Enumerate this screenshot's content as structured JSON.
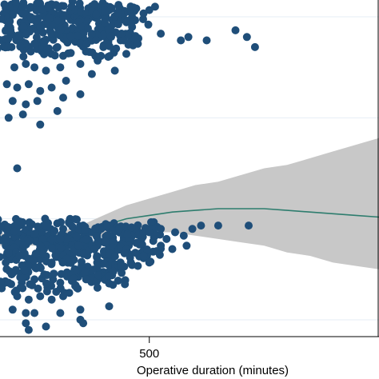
{
  "chart_data": {
    "type": "scatter",
    "title": "",
    "xlabel": "Operative duration (minutes)",
    "ylabel": "",
    "x_ticks": [
      500
    ],
    "x_tick_labels": [
      "500"
    ],
    "grid": true,
    "legend": "none",
    "colors": {
      "points": "#1f4e79",
      "fit_line": "#2e7d6e",
      "confidence_band": "#c8c8c8",
      "grid": "#e6eef4",
      "axis": "#000000"
    },
    "clusters": [
      {
        "name": "",
        "level": "upper",
        "dense_points": [
          [
            250,
            0.96
          ],
          [
            270,
            0.97
          ],
          [
            290,
            0.95
          ],
          [
            310,
            0.97
          ],
          [
            330,
            0.96
          ],
          [
            350,
            0.95
          ],
          [
            370,
            0.97
          ],
          [
            390,
            0.96
          ],
          [
            410,
            0.95
          ],
          [
            430,
            0.97
          ],
          [
            450,
            0.96
          ],
          [
            470,
            0.95
          ],
          [
            250,
            0.91
          ],
          [
            280,
            0.9
          ],
          [
            310,
            0.92
          ],
          [
            340,
            0.9
          ],
          [
            370,
            0.91
          ],
          [
            400,
            0.9
          ],
          [
            430,
            0.91
          ],
          [
            260,
            0.86
          ],
          [
            300,
            0.87
          ],
          [
            340,
            0.86
          ],
          [
            380,
            0.87
          ],
          [
            420,
            0.86
          ],
          [
            455,
            0.88
          ]
        ],
        "outliers": [
          [
            265,
            0.8
          ],
          [
            285,
            0.81
          ],
          [
            300,
            0.8
          ],
          [
            320,
            0.79
          ],
          [
            345,
            0.8
          ],
          [
            380,
            0.81
          ],
          [
            410,
            0.82
          ],
          [
            252,
            0.75
          ],
          [
            270,
            0.74
          ],
          [
            290,
            0.75
          ],
          [
            310,
            0.73
          ],
          [
            330,
            0.74
          ],
          [
            355,
            0.76
          ],
          [
            400,
            0.78
          ],
          [
            440,
            0.79
          ],
          [
            262,
            0.7
          ],
          [
            285,
            0.69
          ],
          [
            305,
            0.7
          ],
          [
            350,
            0.71
          ],
          [
            380,
            0.72
          ],
          [
            255,
            0.65
          ],
          [
            280,
            0.66
          ],
          [
            310,
            0.63
          ],
          [
            340,
            0.67
          ],
          [
            470,
            0.92
          ],
          [
            490,
            0.96
          ],
          [
            500,
            0.97
          ],
          [
            510,
            0.98
          ],
          [
            460,
            0.84
          ],
          [
            480,
            0.87
          ],
          [
            520,
            0.9
          ],
          [
            555,
            0.88
          ],
          [
            568,
            0.89
          ],
          [
            600,
            0.88
          ],
          [
            650,
            0.91
          ],
          [
            670,
            0.89
          ],
          [
            684,
            0.86
          ],
          [
            270,
            0.5
          ]
        ]
      },
      {
        "name": "",
        "level": "lower",
        "dense_points": [
          [
            250,
            0.32
          ],
          [
            270,
            0.31
          ],
          [
            290,
            0.32
          ],
          [
            310,
            0.3
          ],
          [
            330,
            0.31
          ],
          [
            350,
            0.32
          ],
          [
            370,
            0.31
          ],
          [
            390,
            0.3
          ],
          [
            410,
            0.31
          ],
          [
            430,
            0.3
          ],
          [
            450,
            0.31
          ],
          [
            470,
            0.3
          ],
          [
            490,
            0.31
          ],
          [
            250,
            0.27
          ],
          [
            280,
            0.26
          ],
          [
            310,
            0.27
          ],
          [
            340,
            0.25
          ],
          [
            370,
            0.26
          ],
          [
            400,
            0.27
          ],
          [
            430,
            0.25
          ],
          [
            460,
            0.26
          ],
          [
            490,
            0.24
          ],
          [
            250,
            0.22
          ],
          [
            290,
            0.21
          ],
          [
            330,
            0.22
          ],
          [
            370,
            0.2
          ],
          [
            410,
            0.21
          ],
          [
            450,
            0.22
          ],
          [
            255,
            0.16
          ],
          [
            300,
            0.17
          ],
          [
            345,
            0.16
          ],
          [
            390,
            0.17
          ],
          [
            430,
            0.18
          ]
        ],
        "outliers": [
          [
            500,
            0.31
          ],
          [
            510,
            0.3
          ],
          [
            520,
            0.32
          ],
          [
            530,
            0.29
          ],
          [
            545,
            0.31
          ],
          [
            560,
            0.3
          ],
          [
            575,
            0.32
          ],
          [
            590,
            0.33
          ],
          [
            620,
            0.33
          ],
          [
            673,
            0.33
          ],
          [
            520,
            0.27
          ],
          [
            540,
            0.26
          ],
          [
            565,
            0.27
          ],
          [
            480,
            0.21
          ],
          [
            500,
            0.22
          ],
          [
            270,
            0.12
          ],
          [
            290,
            0.11
          ],
          [
            310,
            0.12
          ],
          [
            330,
            0.11
          ],
          [
            350,
            0.12
          ],
          [
            262,
            0.08
          ],
          [
            285,
            0.07
          ],
          [
            300,
            0.07
          ],
          [
            345,
            0.07
          ],
          [
            380,
            0.08
          ],
          [
            430,
            0.09
          ],
          [
            285,
            0.04
          ],
          [
            320,
            0.03
          ],
          [
            380,
            0.05
          ],
          [
            290,
            0.02
          ],
          [
            385,
            0.04
          ]
        ]
      }
    ],
    "fit_line": {
      "x": [
        240,
        280,
        310,
        340,
        380,
        420,
        460,
        500,
        540,
        580,
        620,
        660,
        700,
        740,
        780,
        820,
        860,
        900
      ],
      "y": [
        0.29,
        0.28,
        0.28,
        0.29,
        0.31,
        0.33,
        0.35,
        0.36,
        0.37,
        0.375,
        0.38,
        0.38,
        0.38,
        0.375,
        0.37,
        0.365,
        0.36,
        0.355
      ]
    },
    "confidence_band": {
      "x": [
        240,
        280,
        310,
        340,
        380,
        420,
        460,
        500,
        540,
        580,
        620,
        660,
        700,
        740,
        780,
        820,
        860,
        900
      ],
      "lower": [
        0.27,
        0.27,
        0.27,
        0.28,
        0.29,
        0.3,
        0.31,
        0.31,
        0.31,
        0.3,
        0.29,
        0.28,
        0.27,
        0.25,
        0.24,
        0.22,
        0.21,
        0.2
      ],
      "upper": [
        0.31,
        0.29,
        0.3,
        0.31,
        0.33,
        0.36,
        0.39,
        0.41,
        0.43,
        0.45,
        0.46,
        0.48,
        0.5,
        0.51,
        0.53,
        0.55,
        0.57,
        0.59
      ]
    },
    "xlim": [
      240,
      900
    ],
    "ylim": [
      0,
      1
    ]
  }
}
